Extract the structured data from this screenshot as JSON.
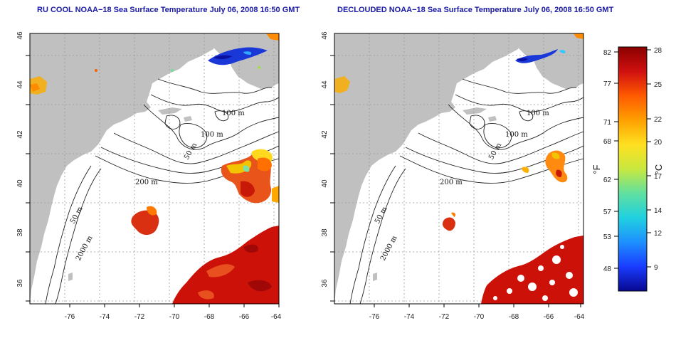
{
  "panels": [
    {
      "title": "RU COOL NOAA−18 Sea Surface Temperature July 06, 2008 16:50 GMT",
      "contour_labels": [
        "100 m",
        "100 m",
        "50 m",
        "200 m",
        "50 m",
        "2000 m"
      ]
    },
    {
      "title": "DECLOUDED NOAA−18 Sea Surface Temperature July 06, 2008 16:50 GMT",
      "contour_labels": [
        "100 m",
        "100 m",
        "50 m",
        "200 m",
        "50 m",
        "2000 m"
      ]
    }
  ],
  "axes": {
    "lon_ticks": [
      "-76",
      "-74",
      "-72",
      "-70",
      "-68",
      "-66",
      "-64"
    ],
    "lat_ticks": [
      "36",
      "38",
      "40",
      "42",
      "44",
      "46"
    ],
    "lon_range": [
      -77.2,
      -62.9
    ],
    "lat_range": [
      35.0,
      46.0
    ],
    "grid": "dotted"
  },
  "colorbar": {
    "left_unit": "°F",
    "right_unit": "°C",
    "fahrenheit_ticks": [
      "82",
      "77",
      "71",
      "68",
      "62",
      "57",
      "53",
      "48"
    ],
    "celsius_ticks": [
      "28",
      "25",
      "22",
      "20",
      "17",
      "14",
      "12",
      "9"
    ],
    "colors": [
      "#07078f",
      "#1a3cff",
      "#1e90ff",
      "#20d0e0",
      "#60e0a0",
      "#c8e840",
      "#ffe020",
      "#ffa000",
      "#ff5a00",
      "#d01010",
      "#8a0000"
    ]
  },
  "colors": {
    "land": "#c0c0c0",
    "ocean": "#ffffff",
    "title": "#1a1aa6",
    "warm_sst": "#cc1108",
    "cold_sst": "#1a38d8"
  }
}
